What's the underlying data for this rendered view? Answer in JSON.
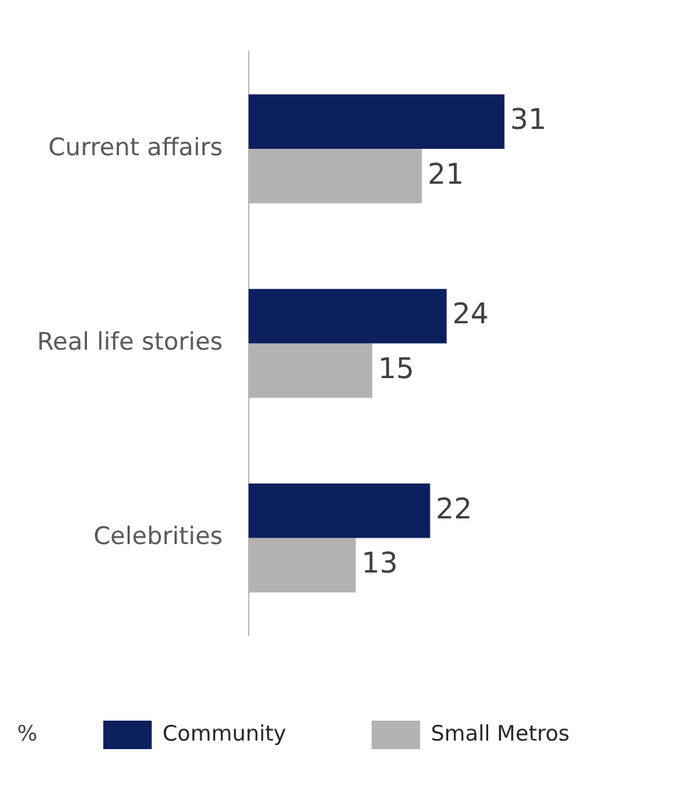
{
  "chart_data": {
    "type": "bar",
    "orientation": "horizontal",
    "categories": [
      "Current affairs",
      "Real life stories",
      "Celebrities"
    ],
    "series": [
      {
        "name": "Community",
        "color": "#0c1f5e",
        "values": [
          31,
          24,
          22
        ]
      },
      {
        "name": "Small Metros",
        "color": "#b3b3b3",
        "values": [
          21,
          15,
          13
        ]
      }
    ],
    "data_labels": true,
    "tick_labels": "y",
    "grid": false,
    "legend": "bottom",
    "annotations": [
      "%"
    ]
  }
}
